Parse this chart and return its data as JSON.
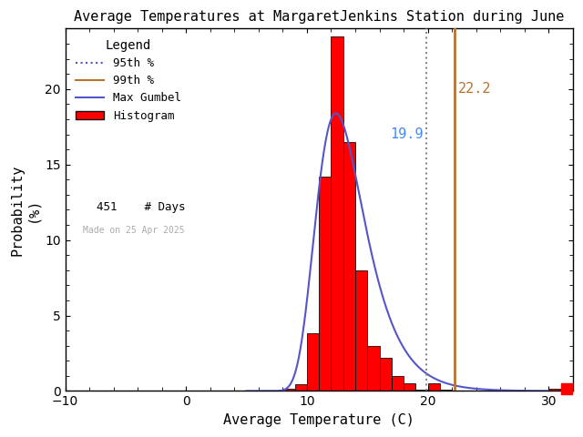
{
  "title": "Average Temperatures at MargaretJenkins Station during June",
  "xlabel": "Average Temperature (C)",
  "ylabel": "Probability\n(%)",
  "xlim": [
    -10,
    32
  ],
  "ylim": [
    0,
    24
  ],
  "xticks": [
    -10,
    0,
    10,
    20,
    30
  ],
  "yticks": [
    0,
    5,
    10,
    15,
    20
  ],
  "bar_left_edges": [
    8.0,
    9.0,
    10.0,
    11.0,
    12.0,
    13.0,
    14.0,
    15.0,
    16.0,
    17.0,
    18.0,
    19.0,
    20.0,
    21.0,
    30.0
  ],
  "bar_heights": [
    0.15,
    0.45,
    3.8,
    14.2,
    23.5,
    16.5,
    8.0,
    3.0,
    2.2,
    1.0,
    0.5,
    0.1,
    0.5,
    0.1,
    0.15
  ],
  "bar_width": 1.0,
  "bar_color": "#ff0000",
  "bar_edgecolor": "#111111",
  "percentile_95": 19.9,
  "percentile_99": 22.2,
  "percentile_95_color": "#888888",
  "percentile_99_color": "#b87333",
  "percentile_95_label_color": "#4488ff",
  "percentile_99_label_color": "#b87333",
  "gumbel_mu": 12.4,
  "gumbel_beta": 2.0,
  "gumbel_color": "#5555cc",
  "n_days": 451,
  "watermark": "Made on 25 Apr 2025",
  "watermark_color": "#aaaaaa",
  "bg_color": "#ffffff",
  "legend_title": "Legend",
  "p95_label": "19.9",
  "p99_label": "22.2"
}
